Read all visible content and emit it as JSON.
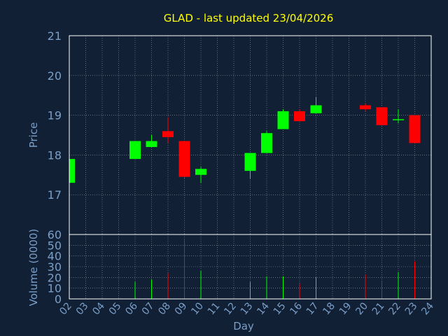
{
  "chart_data": {
    "type": "candlestick",
    "title": "GLAD - last updated 23/04/2026",
    "price_ylabel": "Price",
    "volume_ylabel": "Volume (0000)",
    "xlabel": "Day",
    "price_ylim": [
      16.0,
      21.0
    ],
    "price_yticks": [
      "21",
      "20",
      "19",
      "18",
      "17"
    ],
    "price_ytick_values": [
      21,
      20,
      19,
      18,
      17
    ],
    "volume_ylim": [
      0,
      60
    ],
    "volume_yticks": [
      "60",
      "50",
      "40",
      "30",
      "20",
      "10",
      "0"
    ],
    "volume_ytick_values": [
      60,
      50,
      40,
      30,
      20,
      10,
      0
    ],
    "x_ticks": [
      "02",
      "03",
      "04",
      "05",
      "06",
      "07",
      "08",
      "09",
      "10",
      "11",
      "12",
      "13",
      "14",
      "15",
      "16",
      "17",
      "18",
      "19",
      "20",
      "21",
      "22",
      "23",
      "24"
    ],
    "grid": true,
    "colors": {
      "background": "#112035",
      "axis_text": "#7a9fc8",
      "title": "#ffff00",
      "up": "#00ff00",
      "down": "#ff0000",
      "grid": "#ffffff",
      "frame": "#ffffff"
    },
    "candles": [
      {
        "day": "02",
        "open": 17.3,
        "high": 17.9,
        "low": 17.3,
        "close": 17.9,
        "volume": null
      },
      {
        "day": "06",
        "open": 17.9,
        "high": 18.35,
        "low": 17.9,
        "close": 18.35,
        "volume": 16
      },
      {
        "day": "07",
        "open": 18.2,
        "high": 18.5,
        "low": 18.2,
        "close": 18.35,
        "volume": 18
      },
      {
        "day": "08",
        "open": 18.6,
        "high": 18.95,
        "low": 18.3,
        "close": 18.45,
        "volume": 24
      },
      {
        "day": "09",
        "open": 18.35,
        "high": 18.35,
        "low": 17.4,
        "close": 17.45,
        "volume": 55
      },
      {
        "day": "10",
        "open": 17.5,
        "high": 17.7,
        "low": 17.3,
        "close": 17.65,
        "volume": 26
      },
      {
        "day": "13",
        "open": 17.6,
        "high": 18.05,
        "low": 17.4,
        "close": 18.05,
        "volume": 16
      },
      {
        "day": "14",
        "open": 18.05,
        "high": 18.6,
        "low": 18.05,
        "close": 18.55,
        "volume": 21
      },
      {
        "day": "15",
        "open": 18.65,
        "high": 19.15,
        "low": 18.65,
        "close": 19.1,
        "volume": 21
      },
      {
        "day": "16",
        "open": 19.1,
        "high": 19.15,
        "low": 18.85,
        "close": 18.85,
        "volume": 14
      },
      {
        "day": "17",
        "open": 19.05,
        "high": 19.45,
        "low": 19.05,
        "close": 19.25,
        "volume": 20
      },
      {
        "day": "20",
        "open": 19.25,
        "high": 19.3,
        "low": 19.1,
        "close": 19.15,
        "volume": 23
      },
      {
        "day": "21",
        "open": 19.2,
        "high": 19.2,
        "low": 18.75,
        "close": 18.75,
        "volume": 16
      },
      {
        "day": "22",
        "open": 18.9,
        "high": 19.15,
        "low": 18.8,
        "close": 18.9,
        "volume": 25
      },
      {
        "day": "23",
        "open": 19.0,
        "high": 19.0,
        "low": 18.3,
        "close": 18.3,
        "volume": 35
      }
    ]
  }
}
